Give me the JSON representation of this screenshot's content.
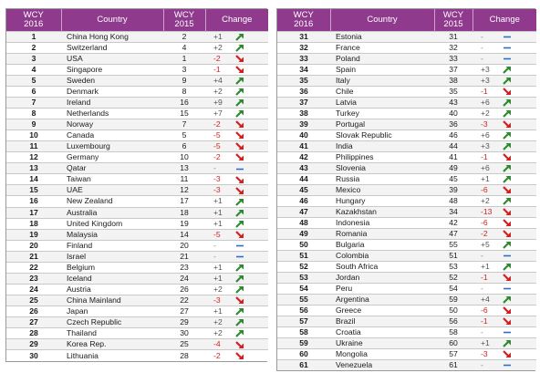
{
  "headers": {
    "rank": [
      "WCY",
      "2016"
    ],
    "country": "Country",
    "prev": [
      "WCY",
      "2015"
    ],
    "change": "Change"
  },
  "colors": {
    "header": "#8f3a8d",
    "up": "#2e8b2e",
    "down": "#d42020",
    "flat": "#2f6fc6"
  },
  "left_rows": [
    {
      "rank": "1",
      "country": "China Hong Kong",
      "prev": "2",
      "change": "+1",
      "trend": "up"
    },
    {
      "rank": "2",
      "country": "Switzerland",
      "prev": "4",
      "change": "+2",
      "trend": "up"
    },
    {
      "rank": "3",
      "country": "USA",
      "prev": "1",
      "change": "-2",
      "trend": "down"
    },
    {
      "rank": "4",
      "country": "Singapore",
      "prev": "3",
      "change": "-1",
      "trend": "down"
    },
    {
      "rank": "5",
      "country": "Sweden",
      "prev": "9",
      "change": "+4",
      "trend": "up"
    },
    {
      "rank": "6",
      "country": "Denmark",
      "prev": "8",
      "change": "+2",
      "trend": "up"
    },
    {
      "rank": "7",
      "country": "Ireland",
      "prev": "16",
      "change": "+9",
      "trend": "up"
    },
    {
      "rank": "8",
      "country": "Netherlands",
      "prev": "15",
      "change": "+7",
      "trend": "up"
    },
    {
      "rank": "9",
      "country": "Norway",
      "prev": "7",
      "change": "-2",
      "trend": "down"
    },
    {
      "rank": "10",
      "country": "Canada",
      "prev": "5",
      "change": "-5",
      "trend": "down"
    },
    {
      "rank": "11",
      "country": "Luxembourg",
      "prev": "6",
      "change": "-5",
      "trend": "down"
    },
    {
      "rank": "12",
      "country": "Germany",
      "prev": "10",
      "change": "-2",
      "trend": "down"
    },
    {
      "rank": "13",
      "country": "Qatar",
      "prev": "13",
      "change": "-",
      "trend": "flat"
    },
    {
      "rank": "14",
      "country": "Taiwan",
      "prev": "11",
      "change": "-3",
      "trend": "down"
    },
    {
      "rank": "15",
      "country": "UAE",
      "prev": "12",
      "change": "-3",
      "trend": "down"
    },
    {
      "rank": "16",
      "country": "New Zealand",
      "prev": "17",
      "change": "+1",
      "trend": "up"
    },
    {
      "rank": "17",
      "country": "Australia",
      "prev": "18",
      "change": "+1",
      "trend": "up"
    },
    {
      "rank": "18",
      "country": "United Kingdom",
      "prev": "19",
      "change": "+1",
      "trend": "up"
    },
    {
      "rank": "19",
      "country": "Malaysia",
      "prev": "14",
      "change": "-5",
      "trend": "down"
    },
    {
      "rank": "20",
      "country": "Finland",
      "prev": "20",
      "change": "-",
      "trend": "flat"
    },
    {
      "rank": "21",
      "country": "Israel",
      "prev": "21",
      "change": "-",
      "trend": "flat"
    },
    {
      "rank": "22",
      "country": "Belgium",
      "prev": "23",
      "change": "+1",
      "trend": "up"
    },
    {
      "rank": "23",
      "country": "Iceland",
      "prev": "24",
      "change": "+1",
      "trend": "up"
    },
    {
      "rank": "24",
      "country": "Austria",
      "prev": "26",
      "change": "+2",
      "trend": "up"
    },
    {
      "rank": "25",
      "country": "China Mainland",
      "prev": "22",
      "change": "-3",
      "trend": "down"
    },
    {
      "rank": "26",
      "country": "Japan",
      "prev": "27",
      "change": "+1",
      "trend": "up"
    },
    {
      "rank": "27",
      "country": "Czech Republic",
      "prev": "29",
      "change": "+2",
      "trend": "up"
    },
    {
      "rank": "28",
      "country": "Thailand",
      "prev": "30",
      "change": "+2",
      "trend": "up"
    },
    {
      "rank": "29",
      "country": "Korea Rep.",
      "prev": "25",
      "change": "-4",
      "trend": "down"
    },
    {
      "rank": "30",
      "country": "Lithuania",
      "prev": "28",
      "change": "-2",
      "trend": "down"
    }
  ],
  "right_rows": [
    {
      "rank": "31",
      "country": "Estonia",
      "prev": "31",
      "change": "-",
      "trend": "flat"
    },
    {
      "rank": "32",
      "country": "France",
      "prev": "32",
      "change": "-",
      "trend": "flat"
    },
    {
      "rank": "33",
      "country": "Poland",
      "prev": "33",
      "change": "-",
      "trend": "flat"
    },
    {
      "rank": "34",
      "country": "Spain",
      "prev": "37",
      "change": "+3",
      "trend": "up"
    },
    {
      "rank": "35",
      "country": "Italy",
      "prev": "38",
      "change": "+3",
      "trend": "up"
    },
    {
      "rank": "36",
      "country": "Chile",
      "prev": "35",
      "change": "-1",
      "trend": "down"
    },
    {
      "rank": "37",
      "country": "Latvia",
      "prev": "43",
      "change": "+6",
      "trend": "up"
    },
    {
      "rank": "38",
      "country": "Turkey",
      "prev": "40",
      "change": "+2",
      "trend": "up"
    },
    {
      "rank": "39",
      "country": "Portugal",
      "prev": "36",
      "change": "-3",
      "trend": "down"
    },
    {
      "rank": "40",
      "country": "Slovak Republic",
      "prev": "46",
      "change": "+6",
      "trend": "up"
    },
    {
      "rank": "41",
      "country": "India",
      "prev": "44",
      "change": "+3",
      "trend": "up"
    },
    {
      "rank": "42",
      "country": "Philippines",
      "prev": "41",
      "change": "-1",
      "trend": "down"
    },
    {
      "rank": "43",
      "country": "Slovenia",
      "prev": "49",
      "change": "+6",
      "trend": "up"
    },
    {
      "rank": "44",
      "country": "Russia",
      "prev": "45",
      "change": "+1",
      "trend": "up"
    },
    {
      "rank": "45",
      "country": "Mexico",
      "prev": "39",
      "change": "-6",
      "trend": "down"
    },
    {
      "rank": "46",
      "country": "Hungary",
      "prev": "48",
      "change": "+2",
      "trend": "up"
    },
    {
      "rank": "47",
      "country": "Kazakhstan",
      "prev": "34",
      "change": "-13",
      "trend": "down"
    },
    {
      "rank": "48",
      "country": "Indonesia",
      "prev": "42",
      "change": "-6",
      "trend": "down"
    },
    {
      "rank": "49",
      "country": "Romania",
      "prev": "47",
      "change": "-2",
      "trend": "down"
    },
    {
      "rank": "50",
      "country": "Bulgaria",
      "prev": "55",
      "change": "+5",
      "trend": "up"
    },
    {
      "rank": "51",
      "country": "Colombia",
      "prev": "51",
      "change": "-",
      "trend": "flat"
    },
    {
      "rank": "52",
      "country": "South Africa",
      "prev": "53",
      "change": "+1",
      "trend": "up"
    },
    {
      "rank": "53",
      "country": "Jordan",
      "prev": "52",
      "change": "-1",
      "trend": "down"
    },
    {
      "rank": "54",
      "country": "Peru",
      "prev": "54",
      "change": "-",
      "trend": "flat"
    },
    {
      "rank": "55",
      "country": "Argentina",
      "prev": "59",
      "change": "+4",
      "trend": "up"
    },
    {
      "rank": "56",
      "country": "Greece",
      "prev": "50",
      "change": "-6",
      "trend": "down"
    },
    {
      "rank": "57",
      "country": "Brazil",
      "prev": "56",
      "change": "-1",
      "trend": "down"
    },
    {
      "rank": "58",
      "country": "Croatia",
      "prev": "58",
      "change": "-",
      "trend": "flat"
    },
    {
      "rank": "59",
      "country": "Ukraine",
      "prev": "60",
      "change": "+1",
      "trend": "up"
    },
    {
      "rank": "60",
      "country": "Mongolia",
      "prev": "57",
      "change": "-3",
      "trend": "down"
    },
    {
      "rank": "61",
      "country": "Venezuela",
      "prev": "61",
      "change": "-",
      "trend": "flat"
    }
  ]
}
